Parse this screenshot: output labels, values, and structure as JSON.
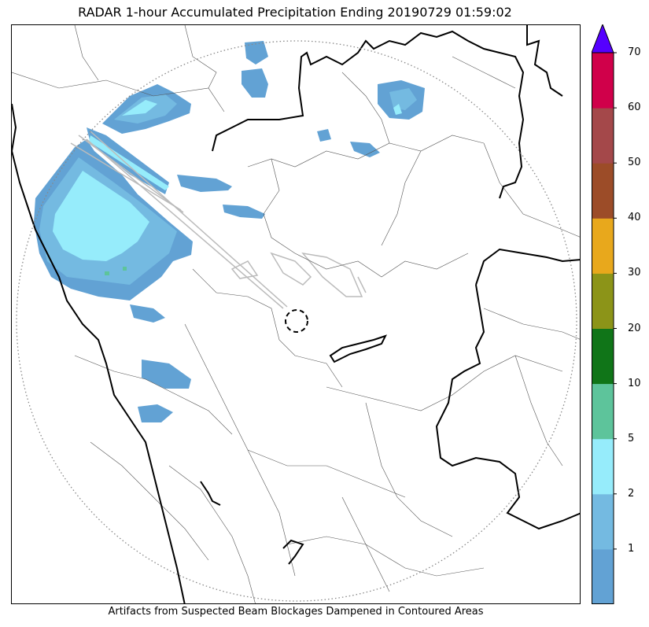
{
  "title": "RADAR 1-hour Accumulated Precipitation Ending 20190729 01:59:02",
  "caption": "Artifacts from Suspected Beam Blockages Dampened in Contoured Areas",
  "colorbar": {
    "ticks": [
      "1",
      "2",
      "5",
      "10",
      "20",
      "30",
      "40",
      "50",
      "60",
      "70"
    ],
    "bins": [
      {
        "range": "0.1-1",
        "color": "#62a2d4"
      },
      {
        "range": "1-2",
        "color": "#74bae1"
      },
      {
        "range": "2-5",
        "color": "#96ecfb"
      },
      {
        "range": "5-10",
        "color": "#5dc49b"
      },
      {
        "range": "10-20",
        "color": "#107518"
      },
      {
        "range": "20-30",
        "color": "#8c9418"
      },
      {
        "range": "30-40",
        "color": "#e8a81c"
      },
      {
        "range": "40-50",
        "color": "#9c4c28"
      },
      {
        "range": "50-60",
        "color": "#a4484a"
      },
      {
        "range": "60-70",
        "color": "#d0004a"
      }
    ],
    "extend_max_color": "#5500ff"
  },
  "map_layers": {
    "radar_range_ring": "dotted-gray-circle",
    "radar_site_marker": "dashed-black-circle",
    "boundaries": [
      "state-borders",
      "district-borders",
      "coastline"
    ],
    "beam_blockage_contours": "light-gray"
  }
}
